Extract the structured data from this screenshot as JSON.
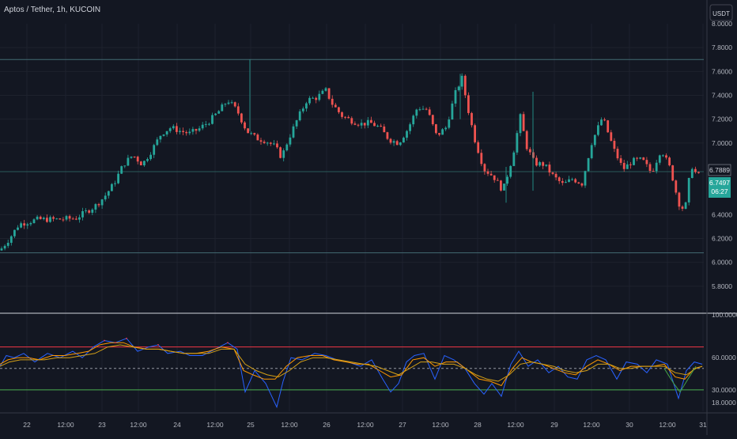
{
  "symbol_title": "Aptos / Tether, 1h, KUCOIN",
  "currency_button": "USDT",
  "colors": {
    "background": "#131722",
    "grid": "#1e222d",
    "text": "#b2b5be",
    "up": "#26a69a",
    "down": "#ef5350",
    "last_price_badge": "#26a69a",
    "hline": "#436a73",
    "stoch_rsi_fast": "#2962ff",
    "stoch_rsi_k": "#f23645",
    "stoch_rsi_d": "#ff9800",
    "stoch_rsi_slow": "#d4a017",
    "stoch_rsi_green": "#43a047",
    "upper_band": "#f23645",
    "lower_band": "#4caf50",
    "mid_band": "#9598a1"
  },
  "chart_data": [
    {
      "type": "candlestick",
      "title": "Aptos / Tether, 1h, KUCOIN",
      "y_axis_labels": [
        "7.8000",
        "7.6000",
        "7.4000",
        "7.2000",
        "7.0000",
        "6.4000",
        "6.2000",
        "6.0000",
        "5.8000"
      ],
      "y_axis_partial_top": "8.0000",
      "ylim": [
        5.6,
        8.0
      ],
      "x_axis_labels": [
        "22",
        "12:00",
        "23",
        "12:00",
        "24",
        "12:00",
        "25",
        "12:00",
        "26",
        "12:00",
        "27",
        "12:00",
        "28",
        "12:00",
        "29",
        "12:00",
        "30",
        "12:00",
        "31"
      ],
      "horizontal_lines": [
        7.7,
        6.08
      ],
      "current_price_line": 6.76,
      "price_labels": {
        "high_label": "6.7889",
        "last_price": "6.7497",
        "countdown": "06:27"
      },
      "price_path": [
        [
          0,
          6.1
        ],
        [
          12,
          6.2
        ],
        [
          24,
          6.32
        ],
        [
          36,
          6.34
        ],
        [
          48,
          6.36
        ],
        [
          72,
          6.36
        ],
        [
          96,
          6.37
        ],
        [
          108,
          6.42
        ],
        [
          120,
          6.47
        ],
        [
          132,
          6.55
        ],
        [
          144,
          6.66
        ],
        [
          156,
          6.82
        ],
        [
          168,
          6.9
        ],
        [
          180,
          6.82
        ],
        [
          192,
          6.94
        ],
        [
          204,
          7.08
        ],
        [
          216,
          7.13
        ],
        [
          228,
          7.1
        ],
        [
          240,
          7.08
        ],
        [
          252,
          7.12
        ],
        [
          264,
          7.18
        ],
        [
          276,
          7.26
        ],
        [
          288,
          7.36
        ],
        [
          300,
          7.27
        ],
        [
          312,
          7.1
        ],
        [
          324,
          7.04
        ],
        [
          336,
          7.02
        ],
        [
          348,
          6.97
        ],
        [
          356,
          6.88
        ],
        [
          364,
          7.02
        ],
        [
          376,
          7.2
        ],
        [
          388,
          7.36
        ],
        [
          400,
          7.38
        ],
        [
          412,
          7.44
        ],
        [
          420,
          7.33
        ],
        [
          432,
          7.23
        ],
        [
          444,
          7.19
        ],
        [
          456,
          7.16
        ],
        [
          468,
          7.17
        ],
        [
          480,
          7.13
        ],
        [
          492,
          7.03
        ],
        [
          504,
          7.0
        ],
        [
          516,
          7.12
        ],
        [
          528,
          7.3
        ],
        [
          540,
          7.28
        ],
        [
          552,
          7.06
        ],
        [
          564,
          7.13
        ],
        [
          576,
          7.42
        ],
        [
          584,
          7.55
        ],
        [
          592,
          7.28
        ],
        [
          600,
          7.04
        ],
        [
          612,
          6.78
        ],
        [
          624,
          6.72
        ],
        [
          636,
          6.6
        ],
        [
          648,
          6.88
        ],
        [
          658,
          7.22
        ],
        [
          666,
          6.97
        ],
        [
          676,
          6.83
        ],
        [
          688,
          6.82
        ],
        [
          700,
          6.72
        ],
        [
          712,
          6.65
        ],
        [
          724,
          6.7
        ],
        [
          736,
          6.66
        ],
        [
          748,
          7.0
        ],
        [
          762,
          7.22
        ],
        [
          776,
          6.95
        ],
        [
          788,
          6.78
        ],
        [
          800,
          6.85
        ],
        [
          812,
          6.86
        ],
        [
          824,
          6.75
        ],
        [
          836,
          6.95
        ],
        [
          848,
          6.78
        ],
        [
          858,
          6.5
        ],
        [
          866,
          6.43
        ],
        [
          874,
          6.82
        ],
        [
          882,
          6.72
        ],
        [
          888,
          6.75
        ]
      ]
    },
    {
      "type": "line",
      "title": "",
      "y_axis_labels": [
        "100.0000",
        "60.0000",
        "30.0000",
        "18.0000"
      ],
      "ylim": [
        10,
        100
      ],
      "bands": {
        "upper": 70,
        "middle": 50,
        "lower": 30
      },
      "series": [
        {
          "values": [
            [
              0,
              52
            ],
            [
              8,
              62
            ],
            [
              18,
              60
            ],
            [
              30,
              64
            ],
            [
              44,
              56
            ],
            [
              60,
              64
            ],
            [
              76,
              60
            ],
            [
              92,
              66
            ],
            [
              104,
              60
            ],
            [
              118,
              70
            ],
            [
              132,
              76
            ],
            [
              146,
              74
            ],
            [
              160,
              78
            ],
            [
              174,
              66
            ],
            [
              188,
              70
            ],
            [
              200,
              72
            ],
            [
              212,
              64
            ],
            [
              228,
              66
            ],
            [
              240,
              62
            ],
            [
              256,
              62
            ],
            [
              272,
              68
            ],
            [
              288,
              74
            ],
            [
              300,
              68
            ],
            [
              310,
              28
            ],
            [
              322,
              48
            ],
            [
              336,
              36
            ],
            [
              350,
              14
            ],
            [
              358,
              38
            ],
            [
              368,
              60
            ],
            [
              382,
              58
            ],
            [
              398,
              64
            ],
            [
              412,
              62
            ],
            [
              426,
              58
            ],
            [
              440,
              56
            ],
            [
              456,
              52
            ],
            [
              470,
              58
            ],
            [
              484,
              40
            ],
            [
              494,
              28
            ],
            [
              504,
              36
            ],
            [
              514,
              56
            ],
            [
              524,
              62
            ],
            [
              536,
              64
            ],
            [
              550,
              40
            ],
            [
              562,
              62
            ],
            [
              574,
              58
            ],
            [
              588,
              50
            ],
            [
              600,
              36
            ],
            [
              612,
              26
            ],
            [
              622,
              36
            ],
            [
              634,
              24
            ],
            [
              646,
              54
            ],
            [
              656,
              66
            ],
            [
              668,
              52
            ],
            [
              680,
              58
            ],
            [
              694,
              46
            ],
            [
              706,
              52
            ],
            [
              718,
              42
            ],
            [
              730,
              40
            ],
            [
              742,
              58
            ],
            [
              754,
              62
            ],
            [
              766,
              58
            ],
            [
              780,
              40
            ],
            [
              792,
              56
            ],
            [
              806,
              54
            ],
            [
              818,
              46
            ],
            [
              830,
              58
            ],
            [
              844,
              54
            ],
            [
              858,
              22
            ],
            [
              868,
              48
            ],
            [
              878,
              56
            ],
            [
              888,
              54
            ]
          ]
        },
        {
          "values": [
            [
              0,
              54
            ],
            [
              10,
              58
            ],
            [
              22,
              60
            ],
            [
              36,
              60
            ],
            [
              50,
              58
            ],
            [
              66,
              62
            ],
            [
              82,
              62
            ],
            [
              98,
              64
            ],
            [
              112,
              66
            ],
            [
              126,
              72
            ],
            [
              140,
              74
            ],
            [
              156,
              74
            ],
            [
              170,
              70
            ],
            [
              186,
              68
            ],
            [
              202,
              68
            ],
            [
              216,
              66
            ],
            [
              232,
              64
            ],
            [
              248,
              64
            ],
            [
              264,
              66
            ],
            [
              280,
              70
            ],
            [
              296,
              68
            ],
            [
              308,
              48
            ],
            [
              320,
              44
            ],
            [
              334,
              40
            ],
            [
              348,
              40
            ],
            [
              362,
              52
            ],
            [
              376,
              60
            ],
            [
              392,
              62
            ],
            [
              408,
              62
            ],
            [
              422,
              58
            ],
            [
              438,
              56
            ],
            [
              452,
              54
            ],
            [
              466,
              54
            ],
            [
              480,
              48
            ],
            [
              494,
              42
            ],
            [
              508,
              44
            ],
            [
              522,
              58
            ],
            [
              536,
              60
            ],
            [
              550,
              52
            ],
            [
              564,
              56
            ],
            [
              578,
              56
            ],
            [
              592,
              48
            ],
            [
              606,
              40
            ],
            [
              620,
              38
            ],
            [
              634,
              34
            ],
            [
              648,
              50
            ],
            [
              660,
              60
            ],
            [
              672,
              56
            ],
            [
              686,
              54
            ],
            [
              700,
              50
            ],
            [
              714,
              46
            ],
            [
              728,
              44
            ],
            [
              742,
              52
            ],
            [
              756,
              58
            ],
            [
              770,
              54
            ],
            [
              784,
              48
            ],
            [
              798,
              52
            ],
            [
              812,
              52
            ],
            [
              826,
              52
            ],
            [
              840,
              54
            ],
            [
              854,
              42
            ],
            [
              866,
              40
            ],
            [
              878,
              50
            ],
            [
              888,
              52
            ]
          ]
        },
        {
          "values": [
            [
              0,
              52
            ],
            [
              12,
              56
            ],
            [
              26,
              58
            ],
            [
              40,
              58
            ],
            [
              56,
              58
            ],
            [
              72,
              60
            ],
            [
              88,
              60
            ],
            [
              104,
              62
            ],
            [
              120,
              64
            ],
            [
              136,
              70
            ],
            [
              152,
              72
            ],
            [
              168,
              70
            ],
            [
              184,
              68
            ],
            [
              200,
              68
            ],
            [
              216,
              66
            ],
            [
              232,
              64
            ],
            [
              248,
              64
            ],
            [
              264,
              64
            ],
            [
              280,
              68
            ],
            [
              296,
              68
            ],
            [
              310,
              54
            ],
            [
              324,
              48
            ],
            [
              338,
              44
            ],
            [
              352,
              42
            ],
            [
              366,
              48
            ],
            [
              380,
              56
            ],
            [
              396,
              60
            ],
            [
              412,
              60
            ],
            [
              428,
              58
            ],
            [
              444,
              56
            ],
            [
              460,
              54
            ],
            [
              476,
              52
            ],
            [
              490,
              48
            ],
            [
              504,
              44
            ],
            [
              518,
              50
            ],
            [
              532,
              56
            ],
            [
              546,
              56
            ],
            [
              560,
              54
            ],
            [
              574,
              54
            ],
            [
              588,
              50
            ],
            [
              602,
              44
            ],
            [
              616,
              40
            ],
            [
              630,
              38
            ],
            [
              644,
              44
            ],
            [
              658,
              54
            ],
            [
              672,
              56
            ],
            [
              686,
              54
            ],
            [
              700,
              52
            ],
            [
              714,
              48
            ],
            [
              728,
              46
            ],
            [
              742,
              48
            ],
            [
              756,
              54
            ],
            [
              770,
              54
            ],
            [
              784,
              50
            ],
            [
              798,
              50
            ],
            [
              812,
              52
            ],
            [
              826,
              52
            ],
            [
              840,
              52
            ],
            [
              854,
              46
            ],
            [
              868,
              44
            ],
            [
              880,
              50
            ],
            [
              888,
              52
            ]
          ]
        },
        {
          "values": [
            [
              840,
              50
            ],
            [
              852,
              36
            ],
            [
              860,
              28
            ],
            [
              870,
              40
            ],
            [
              880,
              52
            ]
          ]
        }
      ]
    }
  ]
}
